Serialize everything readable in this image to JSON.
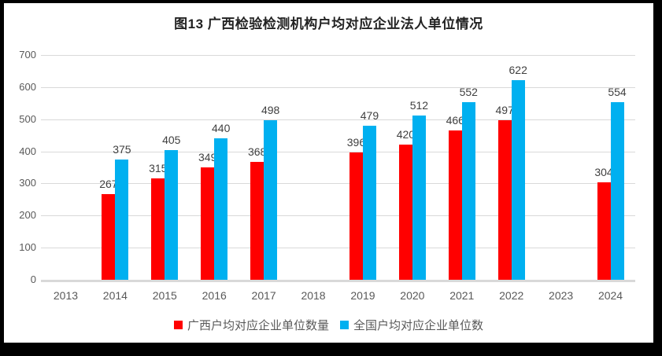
{
  "title": "图13 广西检验检测机构户均对应企业法人单位情况",
  "chart_data": {
    "type": "bar",
    "title": "图13 广西检验检测机构户均对应企业法人单位情况",
    "categories": [
      "2013",
      "2014",
      "2015",
      "2016",
      "2017",
      "2018",
      "2019",
      "2020",
      "2021",
      "2022",
      "2023",
      "2024"
    ],
    "series": [
      {
        "name": "广西户均对应企业单位数量",
        "color": "#FF0000",
        "values": [
          null,
          267,
          315,
          349,
          368,
          null,
          396,
          420,
          466,
          497,
          null,
          304
        ]
      },
      {
        "name": "全国户均对应企业单位数",
        "color": "#00B0F0",
        "values": [
          null,
          375,
          405,
          440,
          498,
          null,
          479,
          512,
          552,
          622,
          null,
          554
        ]
      }
    ],
    "xlabel": "",
    "ylabel": "",
    "ylim": [
      0,
      700
    ],
    "yticks": [
      0,
      100,
      200,
      300,
      400,
      500,
      600,
      700
    ],
    "grid": true,
    "data_labels": true,
    "legend_position": "bottom"
  },
  "colors": {
    "guangxi_red": "#FF0000",
    "national_blue": "#00B0F0",
    "gridline": "#D9D9D9",
    "axis_text": "#595959",
    "value_label_text": "#404040",
    "title_text": "#222222",
    "frame_border": "#000000",
    "chart_background": "#FFFFFF"
  }
}
